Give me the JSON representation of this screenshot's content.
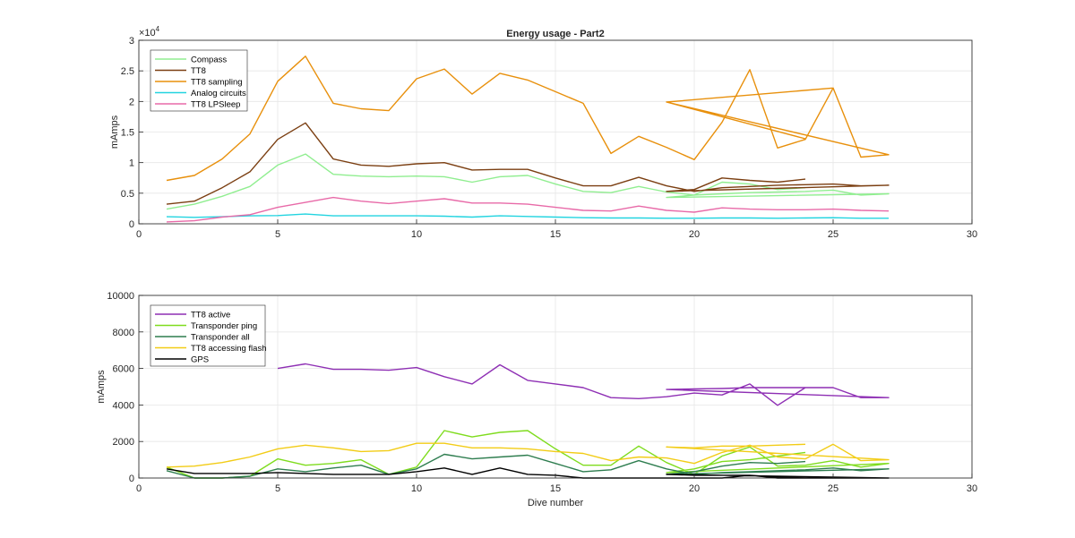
{
  "chart_data": [
    {
      "type": "line",
      "title": "Energy usage - Part2",
      "xlabel": "",
      "ylabel": "mAmps",
      "xlim": [
        0,
        30
      ],
      "ylim": [
        0,
        30000
      ],
      "exponent_label": "×10",
      "exponent_power": "4",
      "xticks": [
        0,
        5,
        10,
        15,
        20,
        25,
        30
      ],
      "yticks": [
        0,
        5000,
        10000,
        15000,
        20000,
        25000,
        30000
      ],
      "ytick_labels": [
        "0",
        "0.5",
        "1",
        "1.5",
        "2",
        "2.5",
        "3"
      ],
      "grid": true,
      "legend_position": "top-left",
      "series": [
        {
          "name": "Compass",
          "color": "#90ee90",
          "x": [
            1,
            2,
            3,
            4,
            5,
            6,
            7,
            8,
            9,
            10,
            11,
            12,
            13,
            14,
            15,
            16,
            17,
            18,
            19,
            20,
            21,
            22,
            23,
            24,
            25,
            26,
            27,
            19,
            20,
            21,
            22,
            23,
            24
          ],
          "y": [
            2400,
            3200,
            4500,
            6100,
            9600,
            11400,
            8100,
            7800,
            7700,
            7800,
            7700,
            6800,
            7700,
            7900,
            6500,
            5300,
            5100,
            6100,
            5200,
            4700,
            4900,
            5100,
            5200,
            5300,
            5500,
            4700,
            4900,
            4300,
            4700,
            6800,
            6500,
            5600,
            5900
          ]
        },
        {
          "name": "TT8",
          "color": "#7b3f12",
          "x": [
            1,
            2,
            3,
            4,
            5,
            6,
            7,
            8,
            9,
            10,
            11,
            12,
            13,
            14,
            15,
            16,
            17,
            18,
            19,
            20,
            21,
            22,
            23,
            24,
            25,
            26,
            27,
            19,
            20,
            21,
            22,
            23,
            24
          ],
          "y": [
            3200,
            3700,
            5900,
            8500,
            13800,
            16500,
            10600,
            9600,
            9400,
            9800,
            10000,
            8800,
            8900,
            8900,
            7500,
            6200,
            6200,
            7600,
            6200,
            5300,
            5900,
            6100,
            6300,
            6400,
            6500,
            6200,
            6300,
            5300,
            5600,
            7500,
            7100,
            6800,
            7300
          ]
        },
        {
          "name": "TT8 sampling",
          "color": "#e8900c",
          "x": [
            1,
            2,
            3,
            4,
            5,
            6,
            7,
            8,
            9,
            10,
            11,
            12,
            13,
            14,
            15,
            16,
            17,
            18,
            19,
            20,
            21,
            22,
            23,
            24,
            25,
            26,
            27,
            19,
            24,
            19,
            25
          ],
          "y": [
            7100,
            7900,
            10600,
            14700,
            23300,
            27400,
            19700,
            18800,
            18500,
            23700,
            25300,
            21200,
            24600,
            23500,
            21600,
            19700,
            11500,
            14300,
            12500,
            10500,
            16600,
            25200,
            12400,
            13800,
            22200,
            10900,
            11300,
            19900,
            13900,
            19900,
            22200
          ]
        },
        {
          "name": "Analog circuits",
          "color": "#22d4e0",
          "x": [
            1,
            2,
            3,
            4,
            5,
            6,
            7,
            8,
            9,
            10,
            11,
            12,
            13,
            14,
            15,
            16,
            17,
            18,
            19,
            20,
            21,
            22,
            23,
            24,
            25,
            26,
            27
          ],
          "y": [
            1150,
            1050,
            1150,
            1300,
            1350,
            1600,
            1300,
            1300,
            1300,
            1300,
            1250,
            1100,
            1300,
            1200,
            1100,
            1000,
            950,
            950,
            900,
            900,
            950,
            950,
            900,
            950,
            1000,
            900,
            900
          ]
        },
        {
          "name": "TT8 LPSleep",
          "color": "#e86aa8",
          "x": [
            1,
            2,
            3,
            4,
            5,
            6,
            7,
            8,
            9,
            10,
            11,
            12,
            13,
            14,
            15,
            16,
            17,
            18,
            19,
            20,
            21,
            22,
            23,
            24,
            25,
            26,
            27
          ],
          "y": [
            300,
            500,
            1100,
            1500,
            2700,
            3500,
            4300,
            3700,
            3300,
            3700,
            4100,
            3400,
            3400,
            3200,
            2700,
            2200,
            2100,
            2900,
            2200,
            1900,
            2600,
            2400,
            2300,
            2300,
            2400,
            2200,
            2100
          ]
        }
      ]
    },
    {
      "type": "line",
      "title": "",
      "xlabel": "Dive number",
      "ylabel": "mAmps",
      "xlim": [
        0,
        30
      ],
      "ylim": [
        0,
        10000
      ],
      "xticks": [
        0,
        5,
        10,
        15,
        20,
        25,
        30
      ],
      "yticks": [
        0,
        2000,
        4000,
        6000,
        8000,
        10000
      ],
      "ytick_labels": [
        "0",
        "2000",
        "4000",
        "6000",
        "8000",
        "10000"
      ],
      "grid": true,
      "legend_position": "top-left",
      "series": [
        {
          "name": "TT8 active",
          "color": "#8e2fb4",
          "x": [
            5,
            6,
            7,
            8,
            9,
            10,
            11,
            12,
            13,
            14,
            15,
            16,
            17,
            18,
            19,
            20,
            21,
            22,
            23,
            24,
            25,
            26,
            27,
            19,
            20,
            21,
            22,
            23,
            24
          ],
          "y": [
            6000,
            6250,
            5950,
            5950,
            5900,
            6050,
            5550,
            5150,
            6200,
            5350,
            5150,
            4950,
            4400,
            4350,
            4450,
            4650,
            4550,
            5150,
            3980,
            4950,
            4950,
            4400,
            4400,
            4850,
            4880,
            4900,
            4950,
            4950,
            4950
          ]
        },
        {
          "name": "Transponder ping",
          "color": "#7fdc1e",
          "x": [
            1,
            2,
            3,
            4,
            5,
            6,
            7,
            8,
            9,
            10,
            11,
            12,
            13,
            14,
            15,
            16,
            17,
            18,
            19,
            20,
            21,
            22,
            23,
            24,
            25,
            26,
            27,
            19,
            20,
            21,
            22,
            23,
            24
          ],
          "y": [
            600,
            0,
            0,
            100,
            1050,
            700,
            800,
            1000,
            200,
            600,
            2600,
            2250,
            2500,
            2600,
            1600,
            700,
            700,
            1750,
            850,
            200,
            1200,
            1700,
            650,
            700,
            950,
            600,
            800,
            300,
            500,
            900,
            1000,
            1200,
            1400
          ]
        },
        {
          "name": "Transponder all",
          "color": "#2e7d4f",
          "x": [
            1,
            2,
            3,
            4,
            5,
            6,
            7,
            8,
            9,
            10,
            11,
            12,
            13,
            14,
            15,
            16,
            17,
            18,
            19,
            20,
            21,
            22,
            23,
            24,
            25,
            26,
            27,
            19,
            20,
            21,
            22,
            23,
            24
          ],
          "y": [
            400,
            0,
            0,
            100,
            500,
            350,
            550,
            700,
            200,
            500,
            1300,
            1050,
            1150,
            1250,
            800,
            350,
            450,
            950,
            500,
            200,
            300,
            350,
            400,
            450,
            550,
            400,
            500,
            200,
            350,
            650,
            850,
            800,
            900
          ]
        },
        {
          "name": "TT8 accessing flash",
          "color": "#f2cc16",
          "x": [
            1,
            2,
            3,
            4,
            5,
            6,
            7,
            8,
            9,
            10,
            11,
            12,
            13,
            14,
            15,
            16,
            17,
            18,
            19,
            20,
            21,
            22,
            23,
            24,
            25,
            26,
            27,
            19,
            20,
            21,
            22,
            23,
            24
          ],
          "y": [
            600,
            650,
            850,
            1150,
            1600,
            1800,
            1650,
            1450,
            1500,
            1900,
            1900,
            1650,
            1650,
            1600,
            1450,
            1350,
            950,
            1150,
            1100,
            800,
            1400,
            1800,
            1150,
            1050,
            1850,
            950,
            1000,
            1700,
            1650,
            1750,
            1750,
            1800,
            1850
          ]
        },
        {
          "name": "GPS",
          "color": "#000000",
          "x": [
            1,
            2,
            3,
            4,
            5,
            6,
            7,
            8,
            9,
            10,
            11,
            12,
            13,
            14,
            15,
            16,
            17,
            18,
            19,
            20,
            21,
            22,
            23,
            24,
            25,
            26,
            27,
            19,
            20,
            21,
            22,
            23,
            24
          ],
          "y": [
            500,
            250,
            250,
            250,
            300,
            250,
            200,
            200,
            200,
            350,
            550,
            200,
            550,
            200,
            150,
            0,
            0,
            0,
            0,
            0,
            0,
            150,
            0,
            0,
            0,
            0,
            0,
            200,
            150,
            150,
            150,
            50,
            0
          ]
        }
      ]
    }
  ]
}
